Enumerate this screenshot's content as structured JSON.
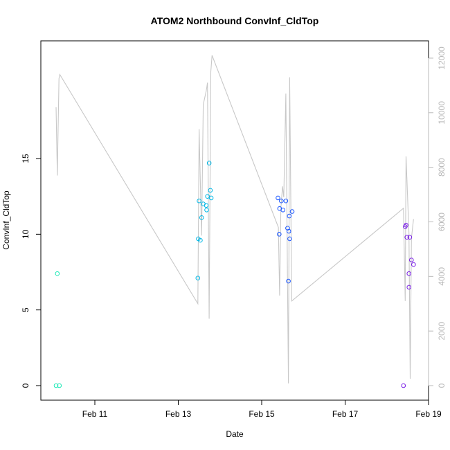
{
  "chart_data": {
    "type": "scatter",
    "title": "ATOM2 Northbound ConvInf_CldTop",
    "xlabel": "Date",
    "ylabel": "ConvInf_CldTop",
    "x_ticks": [
      {
        "day": 11,
        "label": "Feb 11"
      },
      {
        "day": 13,
        "label": "Feb 13"
      },
      {
        "day": 15,
        "label": "Feb 15"
      },
      {
        "day": 17,
        "label": "Feb 17"
      },
      {
        "day": 19,
        "label": "Feb 19"
      }
    ],
    "xlim": [
      "Feb 10",
      "Feb 19"
    ],
    "ylim": [
      0,
      15
    ],
    "y_ticks": [
      0,
      5,
      10,
      15
    ],
    "y2lim": [
      0,
      12000
    ],
    "y2_ticks": [
      0,
      2000,
      4000,
      6000,
      8000,
      10000,
      12000
    ],
    "grid": false,
    "colors": {
      "series1": "#1de9b6",
      "series2": "#00b8e6",
      "series3": "#1a56ff",
      "series4": "#7a1fe6",
      "line": "#c8c8c8",
      "right_axis": "#b8b8b8"
    },
    "series": [
      {
        "color_key": "series1",
        "points": [
          [
            10.07,
            0.0
          ],
          [
            10.1,
            7.4
          ],
          [
            10.15,
            0.0
          ]
        ]
      },
      {
        "color_key": "series2",
        "points": [
          [
            13.47,
            7.1
          ],
          [
            13.48,
            9.7
          ],
          [
            13.5,
            12.2
          ],
          [
            13.53,
            9.6
          ],
          [
            13.56,
            11.1
          ],
          [
            13.6,
            12.0
          ],
          [
            13.67,
            11.9
          ],
          [
            13.68,
            11.6
          ],
          [
            13.7,
            12.5
          ],
          [
            13.74,
            14.7
          ],
          [
            13.77,
            12.9
          ],
          [
            13.79,
            12.4
          ]
        ]
      },
      {
        "color_key": "series3",
        "points": [
          [
            15.39,
            12.4
          ],
          [
            15.42,
            10.0
          ],
          [
            15.43,
            11.7
          ],
          [
            15.47,
            12.2
          ],
          [
            15.51,
            11.6
          ],
          [
            15.58,
            12.2
          ],
          [
            15.62,
            10.4
          ],
          [
            15.64,
            6.9
          ],
          [
            15.65,
            10.2
          ],
          [
            15.66,
            11.2
          ],
          [
            15.67,
            9.7
          ],
          [
            15.73,
            11.5
          ]
        ]
      },
      {
        "color_key": "series4",
        "points": [
          [
            18.4,
            0.0
          ],
          [
            18.44,
            10.5
          ],
          [
            18.46,
            10.6
          ],
          [
            18.48,
            9.8
          ],
          [
            18.53,
            7.4
          ],
          [
            18.53,
            6.5
          ],
          [
            18.55,
            9.8
          ],
          [
            18.59,
            8.3
          ],
          [
            18.64,
            8.0
          ]
        ]
      }
    ],
    "line_series": {
      "axis": "right",
      "points": [
        [
          10.07,
          10200
        ],
        [
          10.1,
          7700
        ],
        [
          10.14,
          11250
        ],
        [
          10.16,
          11400
        ],
        [
          13.47,
          3000
        ],
        [
          13.5,
          9400
        ],
        [
          13.56,
          5500
        ],
        [
          13.6,
          10300
        ],
        [
          13.67,
          10800
        ],
        [
          13.7,
          11100
        ],
        [
          13.74,
          2450
        ],
        [
          13.78,
          11500
        ],
        [
          13.81,
          12100
        ],
        [
          15.4,
          5800
        ],
        [
          15.43,
          3300
        ],
        [
          15.46,
          6500
        ],
        [
          15.5,
          7300
        ],
        [
          15.53,
          6900
        ],
        [
          15.58,
          10700
        ],
        [
          15.64,
          80
        ],
        [
          15.67,
          11300
        ],
        [
          15.72,
          3100
        ],
        [
          18.4,
          6500
        ],
        [
          18.44,
          3100
        ],
        [
          18.46,
          8400
        ],
        [
          18.53,
          5600
        ],
        [
          18.56,
          250
        ],
        [
          18.59,
          5400
        ],
        [
          18.64,
          6100
        ]
      ]
    }
  }
}
